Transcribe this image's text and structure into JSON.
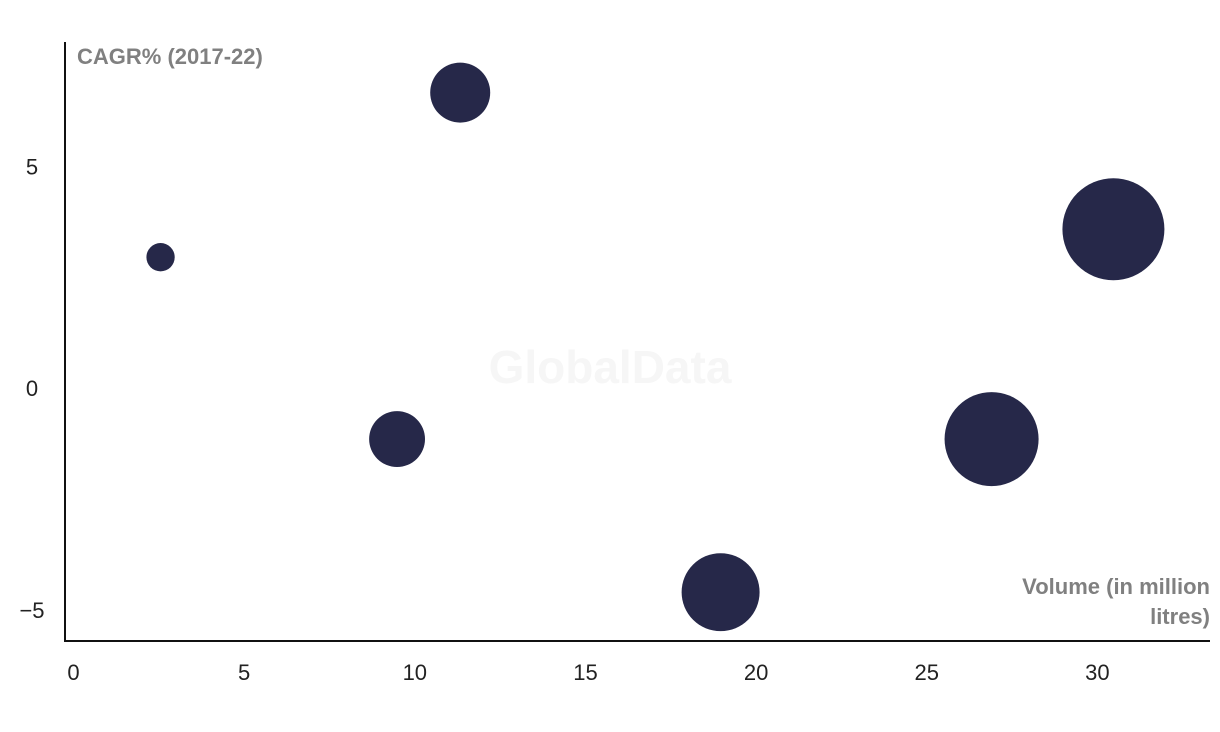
{
  "chart_data": {
    "type": "bubble",
    "watermark": "GlobalData",
    "y_label": "CAGR% (2017-22)",
    "x_label": "Volume (in million litres)",
    "color": "#262849",
    "x": [
      2.55,
      11.33,
      9.48,
      18.96,
      26.9,
      30.47
    ],
    "values": [
      3.0,
      6.71,
      -1.1,
      -4.55,
      -1.1,
      3.63
    ],
    "sizes": [
      2,
      9,
      7.8,
      15.2,
      22.1,
      26
    ],
    "xlim": [
      -0.25,
      33.3
    ],
    "ylim": [
      -5.65,
      7.85
    ],
    "xticks": [
      0,
      5,
      10,
      15,
      20,
      25,
      30
    ],
    "yticks": [
      {
        "value": -5,
        "label": "−5"
      },
      0,
      5
    ],
    "grid": false
  }
}
